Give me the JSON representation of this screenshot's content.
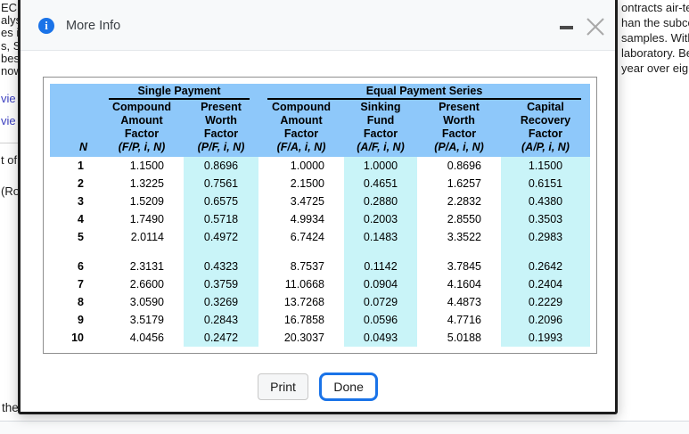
{
  "background": {
    "left_lines": [
      {
        "text": "EC",
        "type": "text"
      },
      {
        "text": "alys",
        "type": "text"
      },
      {
        "text": "es i",
        "type": "text"
      },
      {
        "text": "s, S",
        "type": "text"
      },
      {
        "text": "bes",
        "type": "text"
      },
      {
        "text": "now",
        "type": "text"
      },
      {
        "text": "vie",
        "type": "link"
      },
      {
        "text": "vie",
        "type": "link"
      },
      {
        "text": "t of",
        "type": "text"
      },
      {
        "text": "(Ro",
        "type": "text"
      }
    ],
    "right_lines": [
      "ontracts air-te",
      "han the subco",
      "samples. With",
      "laboratory. Be",
      "year over eig"
    ],
    "bottom_left_text": "the",
    "link_color": "#3b3fc0"
  },
  "modal": {
    "title": "More Info",
    "icons": {
      "title_icon": "info-icon",
      "minimize": "minimize-icon",
      "close": "close-icon"
    },
    "colors": {
      "header_bg": "#8ec8fa",
      "stripe_bg": "#c9f4f8",
      "accent": "#1a73e8"
    },
    "table": {
      "group_headers": [
        "Single Payment",
        "Equal Payment Series"
      ],
      "column_headers": [
        {
          "lines": [],
          "formula": "N"
        },
        {
          "lines": [
            "Compound",
            "Amount",
            "Factor"
          ],
          "formula": "(F/P, i, N)"
        },
        {
          "lines": [
            "Present",
            "Worth",
            "Factor"
          ],
          "formula": "(P/F, i, N)"
        },
        {
          "lines": [
            "Compound",
            "Amount",
            "Factor"
          ],
          "formula": "(F/A, i, N)"
        },
        {
          "lines": [
            "Sinking",
            "Fund",
            "Factor"
          ],
          "formula": "(A/F, i, N)"
        },
        {
          "lines": [
            "Present",
            "Worth",
            "Factor"
          ],
          "formula": "(P/A, i, N)"
        },
        {
          "lines": [
            "Capital",
            "Recovery",
            "Factor"
          ],
          "formula": "(A/P, i, N)"
        }
      ],
      "row_groups": [
        {
          "rows": [
            {
              "n": "1",
              "values": [
                "1.1500",
                "0.8696",
                "1.0000",
                "1.0000",
                "0.8696",
                "1.1500"
              ]
            },
            {
              "n": "2",
              "values": [
                "1.3225",
                "0.7561",
                "2.1500",
                "0.4651",
                "1.6257",
                "0.6151"
              ]
            },
            {
              "n": "3",
              "values": [
                "1.5209",
                "0.6575",
                "3.4725",
                "0.2880",
                "2.2832",
                "0.4380"
              ]
            },
            {
              "n": "4",
              "values": [
                "1.7490",
                "0.5718",
                "4.9934",
                "0.2003",
                "2.8550",
                "0.3503"
              ]
            },
            {
              "n": "5",
              "values": [
                "2.0114",
                "0.4972",
                "6.7424",
                "0.1483",
                "3.3522",
                "0.2983"
              ]
            }
          ]
        },
        {
          "rows": [
            {
              "n": "6",
              "values": [
                "2.3131",
                "0.4323",
                "8.7537",
                "0.1142",
                "3.7845",
                "0.2642"
              ]
            },
            {
              "n": "7",
              "values": [
                "2.6600",
                "0.3759",
                "11.0668",
                "0.0904",
                "4.1604",
                "0.2404"
              ]
            },
            {
              "n": "8",
              "values": [
                "3.0590",
                "0.3269",
                "13.7268",
                "0.0729",
                "4.4873",
                "0.2229"
              ]
            },
            {
              "n": "9",
              "values": [
                "3.5179",
                "0.2843",
                "16.7858",
                "0.0596",
                "4.7716",
                "0.2096"
              ]
            },
            {
              "n": "10",
              "values": [
                "4.0456",
                "0.2472",
                "20.3037",
                "0.0493",
                "5.0188",
                "0.1993"
              ]
            }
          ]
        }
      ]
    },
    "buttons": {
      "print": "Print",
      "done": "Done"
    }
  }
}
